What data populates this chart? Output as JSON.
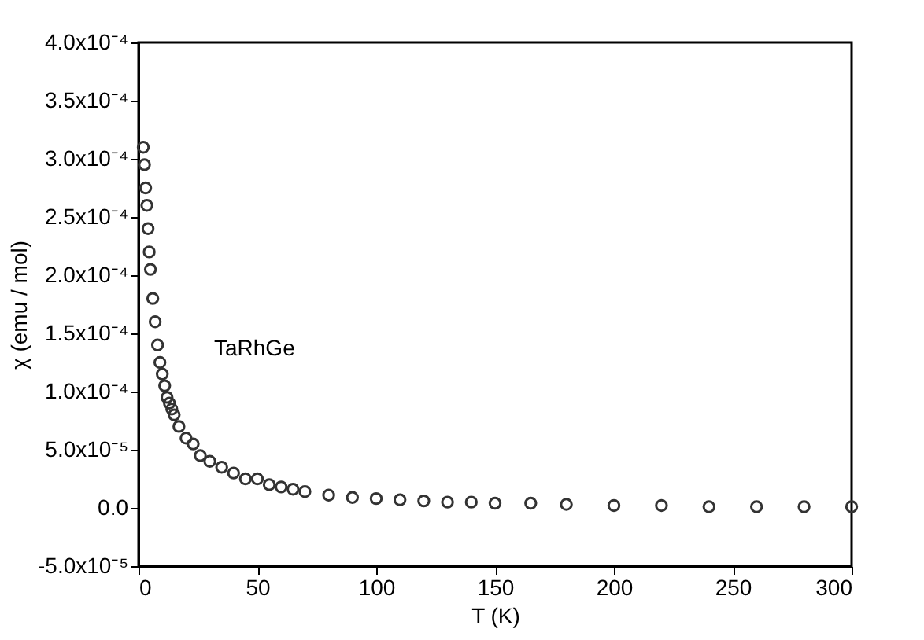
{
  "chart_data": {
    "type": "scatter",
    "xlabel": "T (K)",
    "ylabel": "χ (emu / mol)",
    "annotations": [
      "TaRhGe"
    ],
    "x": [
      2,
      2.5,
      3,
      3.5,
      4,
      4.5,
      5,
      6,
      7,
      8,
      9,
      10,
      11,
      12,
      13,
      14,
      15,
      17,
      20,
      23,
      26,
      30,
      35,
      40,
      45,
      50,
      55,
      60,
      65,
      70,
      80,
      90,
      100,
      110,
      120,
      130,
      140,
      150,
      165,
      180,
      200,
      220,
      240,
      260,
      280,
      300
    ],
    "series": [
      {
        "color": "#333333",
        "values": [
          0.00031,
          0.000295,
          0.000275,
          0.00026,
          0.00024,
          0.00022,
          0.000205,
          0.00018,
          0.00016,
          0.00014,
          0.000125,
          0.000115,
          0.000105,
          9.5e-05,
          9e-05,
          8.5e-05,
          8e-05,
          7e-05,
          6e-05,
          5.5e-05,
          4.5e-05,
          4e-05,
          3.5e-05,
          3e-05,
          2.5e-05,
          2.5e-05,
          2e-05,
          1.8e-05,
          1.6e-05,
          1.4e-05,
          1.1e-05,
          9e-06,
          8e-06,
          7e-06,
          6e-06,
          5e-06,
          5e-06,
          4e-06,
          4e-06,
          3e-06,
          2e-06,
          2e-06,
          1e-06,
          1e-06,
          1e-06,
          1e-06
        ]
      }
    ],
    "marker": "circle",
    "grid": false,
    "xlim": [
      0,
      300
    ],
    "xticks": [
      0,
      50,
      100,
      150,
      200,
      250,
      300
    ],
    "ylim": [
      -5e-05,
      0.0004
    ],
    "yticks": [
      {
        "value": -5e-05,
        "label": "-5.0x10⁻⁵"
      },
      {
        "value": 0,
        "label": "0.0"
      },
      {
        "value": 5e-05,
        "label": "5.0x10⁻⁵"
      },
      {
        "value": 0.0001,
        "label": "1.0x10⁻⁴"
      },
      {
        "value": 0.00015,
        "label": "1.5x10⁻⁴"
      },
      {
        "value": 0.0002,
        "label": "2.0x10⁻⁴"
      },
      {
        "value": 0.00025,
        "label": "2.5x10⁻⁴"
      },
      {
        "value": 0.0003,
        "label": "3.0x10⁻⁴"
      },
      {
        "value": 0.00035,
        "label": "3.5x10⁻⁴"
      },
      {
        "value": 0.0004,
        "label": "4.0x10⁻⁴"
      }
    ]
  }
}
